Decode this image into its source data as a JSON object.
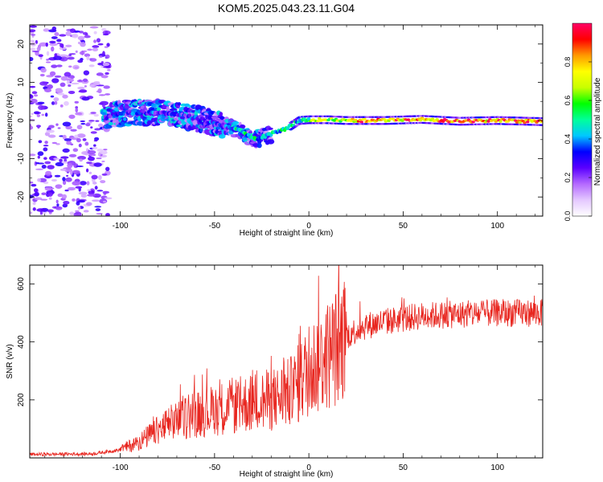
{
  "title": "KOM5.2025.043.23.11.G04",
  "chart_data": [
    {
      "type": "heatmap",
      "xlabel": "Height of straight line (km)",
      "ylabel": "Frequency (Hz)",
      "xlim": [
        -148,
        124
      ],
      "ylim": [
        -25,
        25
      ],
      "xticks": [
        -100,
        -50,
        0,
        50,
        100
      ],
      "yticks": [
        -20,
        -10,
        0,
        10,
        20
      ],
      "colorbar": {
        "label": "Normalized spectral amplitude",
        "range": [
          0,
          1
        ],
        "ticks": [
          "0.0",
          "0.2",
          "0.4",
          "0.6",
          "0.8"
        ],
        "colors": [
          "#ffffff",
          "#e4c8ff",
          "#b469ff",
          "#5a00ff",
          "#0000ff",
          "#00c8ff",
          "#00ff9a",
          "#00ff00",
          "#c8ff00",
          "#ffff00",
          "#ff9900",
          "#ff0000",
          "#ff0066"
        ]
      },
      "track": {
        "description_points": [
          [
            -108,
            0.8
          ],
          [
            -100,
            1.8
          ],
          [
            -90,
            2.2
          ],
          [
            -80,
            2.0
          ],
          [
            -70,
            1.6
          ],
          [
            -60,
            0.6
          ],
          [
            -50,
            -0.8
          ],
          [
            -40,
            -2.0
          ],
          [
            -35,
            -3.0
          ],
          [
            -30,
            -4.8
          ],
          [
            -25,
            -4.5
          ],
          [
            -20,
            -3.5
          ],
          [
            -15,
            -2.5
          ],
          [
            -10,
            -1.6
          ],
          [
            -5,
            0.0
          ],
          [
            0,
            0.2
          ],
          [
            10,
            0.2
          ],
          [
            20,
            0.0
          ],
          [
            40,
            0.0
          ],
          [
            60,
            0.3
          ],
          [
            80,
            -0.2
          ],
          [
            100,
            0.0
          ],
          [
            124,
            -0.3
          ]
        ]
      }
    },
    {
      "type": "line",
      "xlabel": "Height of straight line (km)",
      "ylabel": "SNR (v/v)",
      "xlim": [
        -148,
        124
      ],
      "ylim": [
        0,
        665
      ],
      "xticks": [
        -100,
        -50,
        0,
        50,
        100
      ],
      "yticks": [
        200,
        400,
        600
      ],
      "color": "#e8261f",
      "trend": [
        [
          -148,
          12
        ],
        [
          -115,
          14
        ],
        [
          -100,
          28
        ],
        [
          -90,
          55
        ],
        [
          -80,
          95
        ],
        [
          -70,
          130
        ],
        [
          -60,
          150
        ],
        [
          -50,
          165
        ],
        [
          -40,
          180
        ],
        [
          -30,
          190
        ],
        [
          -20,
          200
        ],
        [
          -15,
          210
        ],
        [
          -10,
          225
        ],
        [
          -5,
          260
        ],
        [
          0,
          300
        ],
        [
          5,
          330
        ],
        [
          10,
          355
        ],
        [
          15,
          385
        ],
        [
          20,
          420
        ],
        [
          25,
          440
        ],
        [
          30,
          455
        ],
        [
          40,
          470
        ],
        [
          60,
          490
        ],
        [
          80,
          495
        ],
        [
          100,
          500
        ],
        [
          124,
          500
        ]
      ]
    }
  ]
}
